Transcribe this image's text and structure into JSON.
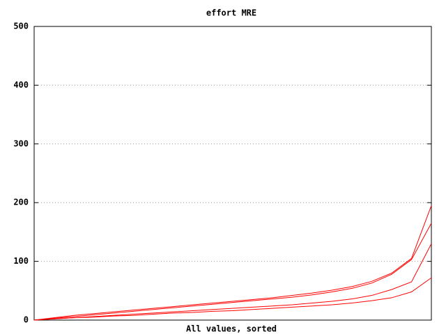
{
  "chart_data": {
    "type": "line",
    "title": "effort MRE",
    "x_label": "All values, sorted",
    "ylim": [
      0,
      500
    ],
    "yticks": [
      0,
      100,
      200,
      300,
      400,
      500
    ],
    "grid": true,
    "series": [
      {
        "color": "#ff0000",
        "values": [
          0,
          4,
          8,
          11,
          14,
          17,
          20,
          23,
          26,
          29,
          32,
          35,
          38,
          42,
          46,
          51,
          57,
          66,
          80,
          105,
          195
        ]
      },
      {
        "color": "#ff0000",
        "values": [
          0,
          3,
          6,
          9,
          12,
          15,
          18,
          21,
          24,
          27,
          30,
          33,
          36,
          39,
          43,
          48,
          54,
          63,
          78,
          103,
          165
        ]
      },
      {
        "color": "#ff0000",
        "values": [
          0,
          2,
          4,
          6,
          8,
          10,
          12,
          14,
          16,
          18,
          20,
          22,
          24,
          26,
          29,
          32,
          36,
          42,
          52,
          65,
          130
        ]
      },
      {
        "color": "#ff0000",
        "values": [
          0,
          2,
          4,
          5,
          7,
          8,
          10,
          12,
          13,
          15,
          16,
          18,
          20,
          22,
          24,
          26,
          29,
          33,
          38,
          48,
          72
        ]
      }
    ]
  }
}
